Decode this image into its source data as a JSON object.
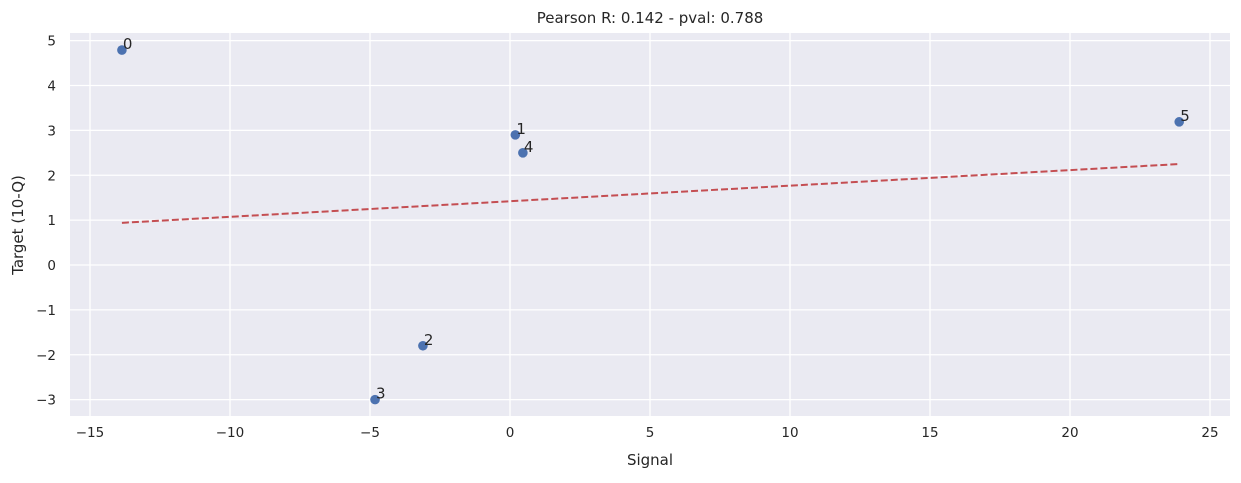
{
  "chart_data": {
    "type": "scatter",
    "title": "Pearson R: 0.142 - pval: 0.788",
    "xlabel": "Signal",
    "ylabel": "Target (10-Q)",
    "xlim": [
      -15.9,
      25.8
    ],
    "ylim": [
      -3.4,
      5.2
    ],
    "xticks": [
      -15,
      -10,
      -5,
      0,
      5,
      10,
      15,
      20,
      25
    ],
    "xtick_labels": [
      "−15",
      "−10",
      "−5",
      "0",
      "5",
      "10",
      "15",
      "20",
      "25"
    ],
    "yticks": [
      -3,
      -2,
      -1,
      0,
      1,
      2,
      3,
      4,
      5
    ],
    "ytick_labels": [
      "−3",
      "−2",
      "−1",
      "0",
      "1",
      "2",
      "3",
      "4",
      "5"
    ],
    "grid": true,
    "background": "#eaeaf2",
    "points": [
      {
        "label": "0",
        "x": -13.86,
        "y": 4.79
      },
      {
        "label": "1",
        "x": 0.19,
        "y": 2.9
      },
      {
        "label": "2",
        "x": -3.11,
        "y": -1.8
      },
      {
        "label": "3",
        "x": -4.82,
        "y": -3.0
      },
      {
        "label": "4",
        "x": 0.46,
        "y": 2.5
      },
      {
        "label": "5",
        "x": 23.9,
        "y": 3.19
      }
    ],
    "point_color": "#4c72b0",
    "fit_line": {
      "x": [
        -13.86,
        23.9
      ],
      "y": [
        0.94,
        2.25
      ],
      "color": "#c44e52",
      "style": "dashed"
    }
  }
}
